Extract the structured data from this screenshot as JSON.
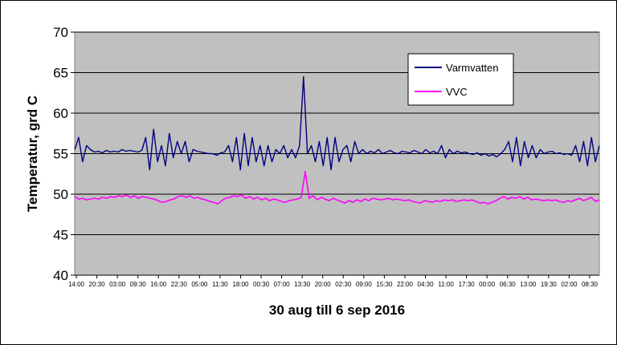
{
  "chart_data": {
    "type": "line",
    "title": "",
    "xlabel": "30 aug till 6 sep 2016",
    "ylabel": "Temperatur, grd C",
    "ylim": [
      40,
      70
    ],
    "yticks": [
      40,
      45,
      50,
      55,
      60,
      65,
      70
    ],
    "xticks": [
      "14:00",
      "20:30",
      "03:00",
      "09:30",
      "16:00",
      "22:30",
      "05:00",
      "11:30",
      "18:00",
      "00:30",
      "07:00",
      "13:30",
      "20:00",
      "02:30",
      "09:00",
      "15:30",
      "22:00",
      "04:30",
      "11:00",
      "17:30",
      "00:00",
      "06:30",
      "13:00",
      "19:30",
      "02:00",
      "08:30"
    ],
    "grid": "horizontal",
    "legend": "top-right",
    "background": "#c0c0c0",
    "series": [
      {
        "name": "Varmvatten",
        "color": "#000080",
        "values": [
          55.5,
          57,
          54,
          56,
          55.5,
          55.2,
          55.3,
          55.1,
          55.4,
          55.2,
          55.3,
          55.2,
          55.5,
          55.3,
          55.4,
          55.3,
          55.2,
          55.4,
          57,
          53,
          58,
          54,
          56,
          53.5,
          57.5,
          54.5,
          56.5,
          55,
          56.5,
          54,
          55.5,
          55.3,
          55.2,
          55.1,
          55,
          55.0,
          54.8,
          55.1,
          55.2,
          56,
          54,
          57,
          53,
          57.5,
          53.5,
          57,
          54,
          56,
          53.5,
          56,
          54,
          55.5,
          55,
          56,
          54.5,
          55.5,
          54.5,
          56,
          64.5,
          55,
          56,
          54,
          56.5,
          53.5,
          57,
          53,
          57,
          54,
          55.5,
          56,
          54,
          56.5,
          55,
          55.5,
          55,
          55.3,
          55.1,
          55.5,
          55,
          55.2,
          55.4,
          55.1,
          55,
          55.3,
          55.2,
          55.1,
          55.4,
          55.2,
          55.0,
          55.5,
          55.1,
          55.3,
          55.0,
          56,
          54.5,
          55.5,
          55,
          55.3,
          55.1,
          55.2,
          55.0,
          54.9,
          55.1,
          54.8,
          55.0,
          54.7,
          54.9,
          54.6,
          55.0,
          55.5,
          56.5,
          54,
          57,
          53.5,
          56.5,
          54.5,
          56,
          54.5,
          55.5,
          55,
          55.2,
          55.3,
          55.0,
          55.1,
          54.9,
          55.0,
          54.8,
          56,
          54,
          56.5,
          53.5,
          57,
          54,
          56
        ]
      },
      {
        "name": "VVC",
        "color": "#ff00ff",
        "values": [
          49.7,
          49.4,
          49.5,
          49.3,
          49.4,
          49.5,
          49.4,
          49.6,
          49.5,
          49.7,
          49.6,
          49.8,
          49.7,
          49.9,
          49.6,
          49.8,
          49.5,
          49.7,
          49.6,
          49.5,
          49.4,
          49.2,
          49.0,
          49.1,
          49.3,
          49.4,
          49.7,
          49.8,
          49.6,
          49.8,
          49.5,
          49.6,
          49.4,
          49.3,
          49.1,
          49.0,
          48.8,
          49.2,
          49.5,
          49.6,
          49.8,
          49.7,
          49.9,
          49.5,
          49.7,
          49.4,
          49.6,
          49.3,
          49.5,
          49.2,
          49.4,
          49.3,
          49.1,
          49.0,
          49.2,
          49.3,
          49.4,
          49.6,
          52.8,
          49.5,
          49.8,
          49.3,
          49.6,
          49.4,
          49.2,
          49.5,
          49.3,
          49.1,
          48.9,
          49.2,
          49.0,
          49.3,
          49.1,
          49.4,
          49.2,
          49.5,
          49.4,
          49.3,
          49.4,
          49.5,
          49.3,
          49.4,
          49.3,
          49.2,
          49.3,
          49.1,
          49.0,
          48.9,
          49.2,
          49.1,
          49.0,
          49.2,
          49.1,
          49.3,
          49.2,
          49.3,
          49.1,
          49.2,
          49.3,
          49.2,
          49.3,
          49.1,
          48.9,
          49.0,
          48.8,
          49.0,
          49.2,
          49.5,
          49.7,
          49.4,
          49.6,
          49.5,
          49.7,
          49.4,
          49.6,
          49.3,
          49.4,
          49.3,
          49.2,
          49.3,
          49.2,
          49.3,
          49.1,
          49.0,
          49.2,
          49.1,
          49.3,
          49.5,
          49.2,
          49.4,
          49.6,
          49.1,
          49.3
        ]
      }
    ]
  }
}
